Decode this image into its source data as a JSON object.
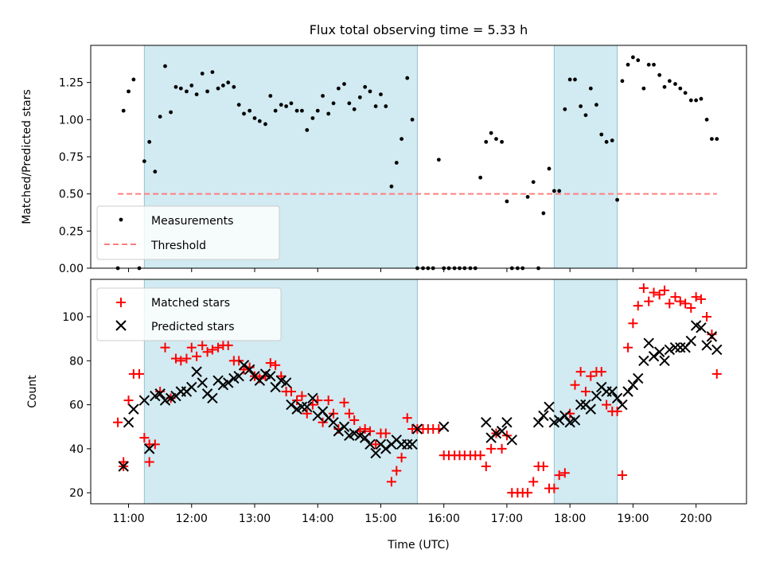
{
  "chart_data": [
    {
      "type": "scatter",
      "title": "Flux total observing time = 5.33 h",
      "xlabel": "",
      "ylabel": "Matched/Predicted stars",
      "xlim": [
        10.4,
        20.8
      ],
      "ylim": [
        0,
        1.5
      ],
      "yticks": [
        0.0,
        0.25,
        0.5,
        0.75,
        1.0,
        1.25
      ],
      "ytick_labels": [
        "0.00",
        "0.25",
        "0.50",
        "0.75",
        "1.00",
        "1.25"
      ],
      "shaded_x_ranges": [
        [
          11.25,
          15.58
        ],
        [
          17.75,
          18.75
        ]
      ],
      "legend": {
        "position": "lower-left",
        "entries": [
          "Measurements",
          "Threshold"
        ]
      },
      "threshold": {
        "name": "Threshold",
        "value": 0.5,
        "x_range": [
          10.83,
          20.33
        ],
        "color": "#ff7f7f"
      },
      "series": [
        {
          "name": "Measurements",
          "color": "#000000",
          "x": [
            10.83,
            10.92,
            11.0,
            11.08,
            11.17,
            11.25,
            11.33,
            11.42,
            11.5,
            11.58,
            11.67,
            11.75,
            11.83,
            11.92,
            12.0,
            12.08,
            12.17,
            12.25,
            12.33,
            12.42,
            12.5,
            12.58,
            12.67,
            12.75,
            12.83,
            12.92,
            13.0,
            13.08,
            13.17,
            13.25,
            13.33,
            13.42,
            13.5,
            13.58,
            13.67,
            13.75,
            13.83,
            13.92,
            14.0,
            14.08,
            14.17,
            14.25,
            14.33,
            14.42,
            14.5,
            14.58,
            14.67,
            14.75,
            14.83,
            14.92,
            15.0,
            15.08,
            15.17,
            15.25,
            15.33,
            15.42,
            15.5,
            15.58,
            15.67,
            15.75,
            15.83,
            15.92,
            16.0,
            16.08,
            16.17,
            16.25,
            16.33,
            16.42,
            16.5,
            16.58,
            16.67,
            16.75,
            16.83,
            16.92,
            17.0,
            17.08,
            17.17,
            17.25,
            17.33,
            17.42,
            17.5,
            17.58,
            17.67,
            17.75,
            17.83,
            17.92,
            18.0,
            18.08,
            18.17,
            18.25,
            18.33,
            18.42,
            18.5,
            18.58,
            18.67,
            18.75,
            18.83,
            18.92,
            19.0,
            19.08,
            19.17,
            19.25,
            19.33,
            19.42,
            19.5,
            19.58,
            19.67,
            19.75,
            19.83,
            19.92,
            20.0,
            20.08,
            20.17,
            20.25,
            20.33
          ],
          "y": [
            0.0,
            1.06,
            1.19,
            1.27,
            0.0,
            0.72,
            0.85,
            0.65,
            1.02,
            1.36,
            1.05,
            1.22,
            1.21,
            1.19,
            1.23,
            1.17,
            1.31,
            1.19,
            1.32,
            1.21,
            1.23,
            1.25,
            1.22,
            1.1,
            1.04,
            1.06,
            1.01,
            0.99,
            0.97,
            1.16,
            1.06,
            1.1,
            1.09,
            1.11,
            1.06,
            1.06,
            0.93,
            1.01,
            1.06,
            1.16,
            1.04,
            1.11,
            1.21,
            1.24,
            1.11,
            1.07,
            1.15,
            1.22,
            1.19,
            1.09,
            1.17,
            1.09,
            0.55,
            0.71,
            0.87,
            1.28,
            1.0,
            0.0,
            0.0,
            0.0,
            0.0,
            0.73,
            0.0,
            0.0,
            0.0,
            0.0,
            0.0,
            0.0,
            0.0,
            0.61,
            0.85,
            0.91,
            0.87,
            0.85,
            0.45,
            0.0,
            0.0,
            0.0,
            0.48,
            0.58,
            0.0,
            0.37,
            0.67,
            0.52,
            0.52,
            1.07,
            1.27,
            1.27,
            1.09,
            1.03,
            1.21,
            1.1,
            0.9,
            0.85,
            0.86,
            0.46,
            1.26,
            1.37,
            1.42,
            1.4,
            1.21,
            1.37,
            1.37,
            1.3,
            1.22,
            1.26,
            1.24,
            1.21,
            1.18,
            1.13,
            1.13,
            1.14,
            1.0,
            0.87,
            0.87
          ]
        }
      ]
    },
    {
      "type": "scatter",
      "title": "",
      "xlabel": "Time (UTC)",
      "ylabel": "Count",
      "xlim": [
        10.4,
        20.8
      ],
      "ylim": [
        15,
        117
      ],
      "xticks": [
        11,
        12,
        13,
        14,
        15,
        16,
        17,
        18,
        19,
        20
      ],
      "xtick_labels": [
        "11:00",
        "12:00",
        "13:00",
        "14:00",
        "15:00",
        "16:00",
        "17:00",
        "18:00",
        "19:00",
        "20:00"
      ],
      "yticks": [
        20,
        40,
        60,
        80,
        100
      ],
      "ytick_labels": [
        "20",
        "40",
        "60",
        "80",
        "100"
      ],
      "shaded_x_ranges": [
        [
          11.25,
          15.58
        ],
        [
          17.75,
          18.75
        ]
      ],
      "legend": {
        "position": "top-left",
        "entries": [
          "Matched stars",
          "Predicted stars"
        ]
      },
      "series": [
        {
          "name": "Matched stars",
          "marker": "plus",
          "color": "#ff0000",
          "x": [
            10.83,
            10.92,
            11.0,
            11.08,
            11.17,
            11.25,
            11.33,
            11.42,
            11.5,
            11.58,
            11.67,
            11.75,
            11.83,
            11.92,
            12.0,
            12.08,
            12.17,
            12.25,
            12.33,
            12.42,
            12.5,
            12.58,
            12.67,
            12.75,
            12.83,
            12.92,
            13.0,
            13.08,
            13.17,
            13.25,
            13.33,
            13.42,
            13.5,
            13.58,
            13.67,
            13.75,
            13.83,
            13.92,
            14.0,
            14.08,
            14.17,
            14.25,
            14.33,
            14.42,
            14.5,
            14.58,
            14.67,
            14.75,
            14.83,
            14.92,
            15.0,
            15.08,
            15.17,
            15.25,
            15.33,
            15.42,
            15.5,
            15.58,
            15.67,
            15.75,
            15.83,
            15.92,
            16.0,
            16.08,
            16.17,
            16.25,
            16.33,
            16.42,
            16.5,
            16.58,
            16.67,
            16.75,
            16.83,
            16.92,
            17.0,
            17.08,
            17.17,
            17.25,
            17.33,
            17.42,
            17.5,
            17.58,
            17.67,
            17.75,
            17.83,
            17.92,
            18.0,
            18.08,
            18.17,
            18.25,
            18.33,
            18.42,
            18.5,
            18.58,
            18.67,
            18.75,
            18.83,
            18.92,
            19.0,
            19.08,
            19.17,
            19.25,
            19.33,
            19.42,
            19.5,
            19.58,
            19.67,
            19.75,
            19.83,
            19.92,
            20.0,
            20.08,
            20.17,
            20.25,
            20.33,
            10.92,
            11.33
          ],
          "y": [
            52,
            34,
            62,
            74,
            74,
            45,
            34,
            42,
            66,
            86,
            63,
            81,
            80,
            81,
            86,
            82,
            87,
            84,
            85,
            86,
            87,
            87,
            80,
            80,
            76,
            77,
            73,
            72,
            73,
            79,
            78,
            73,
            66,
            66,
            62,
            64,
            56,
            60,
            62,
            52,
            62,
            56,
            49,
            61,
            56,
            53,
            48,
            49,
            48,
            42,
            47,
            47,
            25,
            30,
            36,
            54,
            49,
            49,
            49,
            49,
            49,
            49,
            37,
            37,
            37,
            37,
            37,
            37,
            37,
            37,
            32,
            40,
            47,
            40,
            46,
            20,
            20,
            20,
            20,
            25,
            32,
            32,
            22,
            22,
            28,
            29,
            56,
            69,
            75,
            66,
            73,
            75,
            75,
            60,
            57,
            57,
            28,
            86,
            97,
            105,
            113,
            107,
            111,
            110,
            112,
            106,
            109,
            107,
            106,
            104,
            109,
            108,
            100,
            92,
            74,
            32,
            42
          ]
        },
        {
          "name": "Predicted stars",
          "marker": "x",
          "color": "#000000",
          "x": [
            10.92,
            11.0,
            11.08,
            11.25,
            11.33,
            11.42,
            11.5,
            11.58,
            11.67,
            11.75,
            11.83,
            11.92,
            12.0,
            12.08,
            12.17,
            12.25,
            12.33,
            12.42,
            12.5,
            12.58,
            12.67,
            12.75,
            12.83,
            12.92,
            13.0,
            13.08,
            13.17,
            13.25,
            13.33,
            13.42,
            13.5,
            13.58,
            13.67,
            13.75,
            13.83,
            13.92,
            14.0,
            14.08,
            14.17,
            14.25,
            14.33,
            14.42,
            14.5,
            14.58,
            14.67,
            14.75,
            14.83,
            14.92,
            15.0,
            15.08,
            15.17,
            15.25,
            15.33,
            15.42,
            15.5,
            15.58,
            16.0,
            16.67,
            16.75,
            16.83,
            16.92,
            17.0,
            17.08,
            17.5,
            17.58,
            17.67,
            17.75,
            17.83,
            17.92,
            18.0,
            18.08,
            18.17,
            18.25,
            18.33,
            18.42,
            18.5,
            18.58,
            18.67,
            18.75,
            18.83,
            18.92,
            19.0,
            19.08,
            19.17,
            19.25,
            19.33,
            19.42,
            19.5,
            19.58,
            19.67,
            19.75,
            19.83,
            19.92,
            20.0,
            20.08,
            20.17,
            20.25,
            20.33
          ],
          "y": [
            32,
            52,
            58,
            62,
            40,
            64,
            65,
            62,
            63,
            64,
            66,
            66,
            68,
            75,
            70,
            65,
            63,
            71,
            69,
            70,
            72,
            73,
            78,
            76,
            73,
            71,
            74,
            73,
            68,
            71,
            70,
            60,
            58,
            59,
            59,
            63,
            55,
            57,
            54,
            52,
            48,
            50,
            46,
            47,
            46,
            45,
            42,
            38,
            42,
            40,
            42,
            44,
            42,
            42,
            42,
            49,
            50,
            52,
            45,
            47,
            48,
            52,
            44,
            52,
            55,
            59,
            52,
            53,
            55,
            52,
            53,
            60,
            60,
            58,
            64,
            68,
            66,
            66,
            63,
            60,
            66,
            69,
            72,
            80,
            88,
            82,
            84,
            80,
            85,
            86,
            86,
            86,
            89,
            96,
            95,
            87,
            91,
            85
          ]
        }
      ]
    }
  ]
}
